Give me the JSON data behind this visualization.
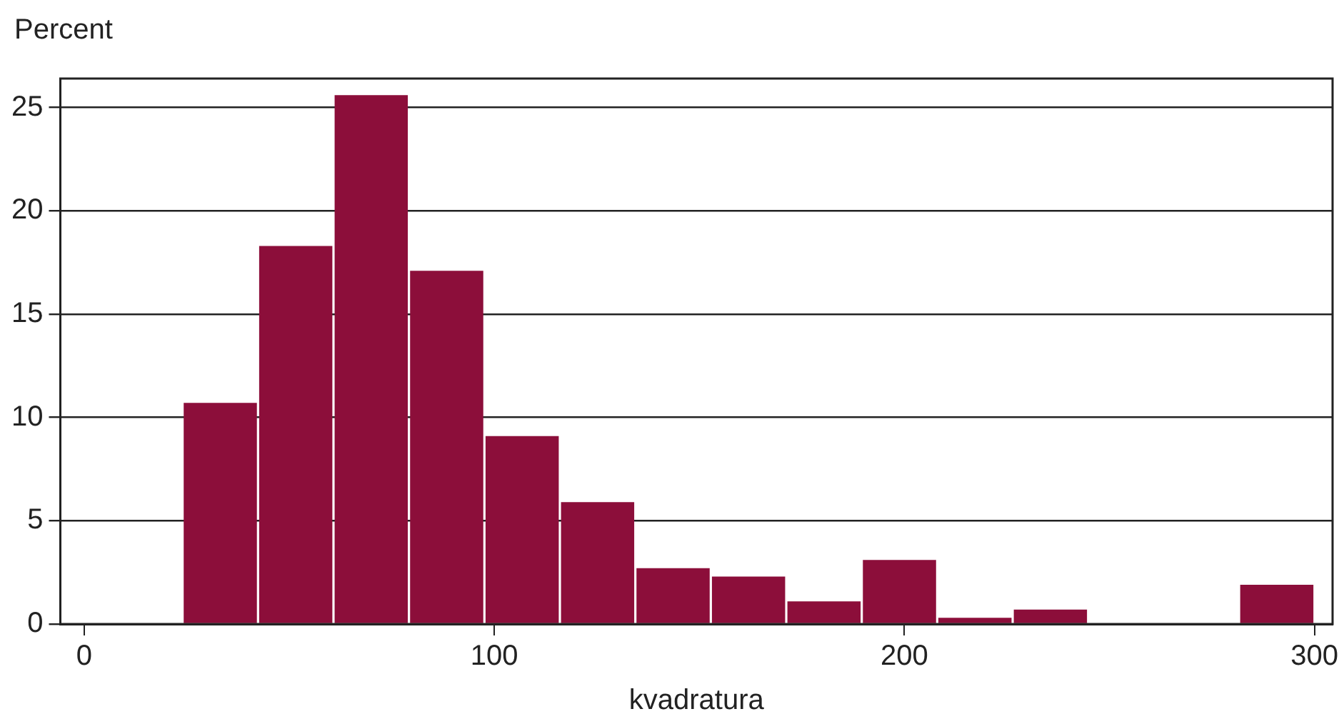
{
  "chart_data": {
    "type": "histogram",
    "ylabel": "Percent",
    "xlabel": "kvadratura",
    "bins": [
      24,
      42.4,
      60.8,
      79.2,
      97.6,
      116,
      134.4,
      152.8,
      171.2,
      189.6,
      208,
      226.4,
      244.8,
      263.2,
      281.6,
      300
    ],
    "values": [
      10.7,
      18.3,
      25.6,
      17.1,
      9.1,
      5.9,
      2.7,
      2.3,
      1.1,
      3.1,
      0.3,
      0.7,
      0,
      0,
      1.9
    ],
    "color": "#8c0e3a",
    "xlim": [
      -5.8,
      304.4
    ],
    "xticks": [
      0,
      100,
      200,
      300
    ],
    "ylim": [
      0,
      26.4
    ],
    "yticks": [
      0,
      5,
      10,
      15,
      20,
      25
    ],
    "grid": "y",
    "legend": false
  }
}
